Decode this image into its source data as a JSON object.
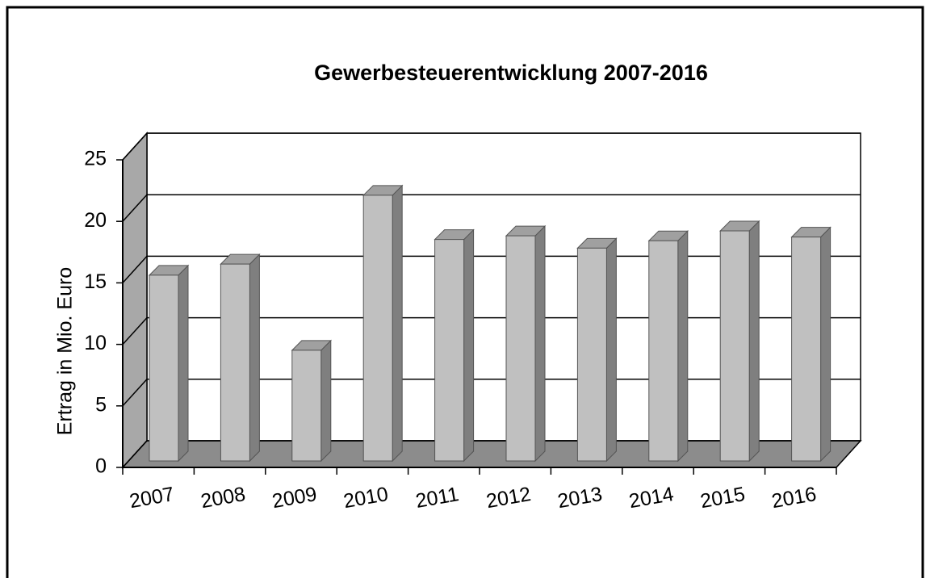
{
  "chart_data": {
    "type": "bar",
    "title": "Gewerbesteuerentwicklung 2007-2016",
    "y_label": "Ertrag in Mio. Euro",
    "categories": [
      "2007",
      "2008",
      "2009",
      "2010",
      "2011",
      "2012",
      "2013",
      "2014",
      "2015",
      "2016"
    ],
    "values": [
      15.1,
      16.0,
      9.0,
      21.6,
      18.0,
      18.3,
      17.3,
      17.9,
      18.7,
      18.2
    ],
    "color": "#c0c0c0",
    "ylim": [
      0,
      25
    ],
    "yticks": [
      0,
      5,
      10,
      15,
      20,
      25
    ],
    "grid": true
  }
}
